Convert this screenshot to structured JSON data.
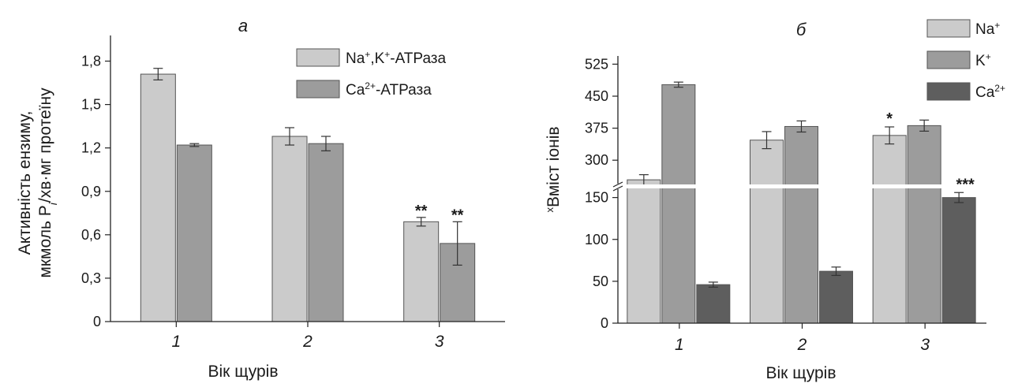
{
  "chart_data": [
    {
      "type": "bar",
      "title": "а",
      "ylabel_line1": "Активність ензиму,",
      "ylabel_line2_pre": "мкмоль P",
      "ylabel_line2_sub": "i",
      "ylabel_line2_post": "/хв·мг протеїну",
      "xlabel": "Вік щурів",
      "categories": [
        "1",
        "2",
        "3"
      ],
      "yticks": [
        "0",
        "0,3",
        "0,6",
        "0,9",
        "1,2",
        "1,5",
        "1,8"
      ],
      "ylim": [
        0,
        1.95
      ],
      "grid": false,
      "legend_position": "top-right",
      "series": [
        {
          "name_parts": {
            "base": "Na",
            "sup1": "+",
            "mid": ",K",
            "sup2": "+",
            "tail": "-АТРаза"
          },
          "color": "#cbcbcb",
          "values": [
            1.71,
            1.28,
            0.69
          ],
          "errors": [
            0.04,
            0.06,
            0.03
          ],
          "marks": [
            "",
            "",
            "**"
          ]
        },
        {
          "name_parts": {
            "base": "Ca",
            "sup1": "2+",
            "mid": "",
            "sup2": "",
            "tail": "-АТРаза"
          },
          "color": "#9c9c9c",
          "values": [
            1.22,
            1.23,
            0.54
          ],
          "errors": [
            0.01,
            0.05,
            0.15
          ],
          "marks": [
            "",
            "",
            "**"
          ]
        }
      ]
    },
    {
      "type": "bar",
      "title": "б",
      "ylabel": "Вміст іонів",
      "ylabel_prefix": "x",
      "xlabel": "Вік щурів",
      "categories": [
        "1",
        "2",
        "3"
      ],
      "axis_break": {
        "lower": [
          0,
          160
        ],
        "upper": [
          245,
          535
        ]
      },
      "yticks_lower": [
        "0",
        "50",
        "100",
        "150"
      ],
      "yticks_upper": [
        "300",
        "375",
        "450",
        "525"
      ],
      "grid": false,
      "legend_position": "top-right",
      "series": [
        {
          "name_base": "Na",
          "name_sup": "+",
          "color": "#cbcbcb",
          "values": [
            254,
            347,
            358
          ],
          "errors": [
            12,
            20,
            20
          ],
          "marks": [
            "",
            "",
            "*"
          ]
        },
        {
          "name_base": "K",
          "name_sup": "+",
          "color": "#9c9c9c",
          "values": [
            477,
            379,
            381
          ],
          "errors": [
            6,
            13,
            13
          ],
          "marks": [
            "",
            "",
            ""
          ]
        },
        {
          "name_base": "Ca",
          "name_sup": "2+",
          "color": "#5e5e5e",
          "values": [
            46,
            62,
            150
          ],
          "errors": [
            3,
            5,
            6
          ],
          "marks": [
            "",
            "",
            "***"
          ]
        }
      ]
    }
  ]
}
